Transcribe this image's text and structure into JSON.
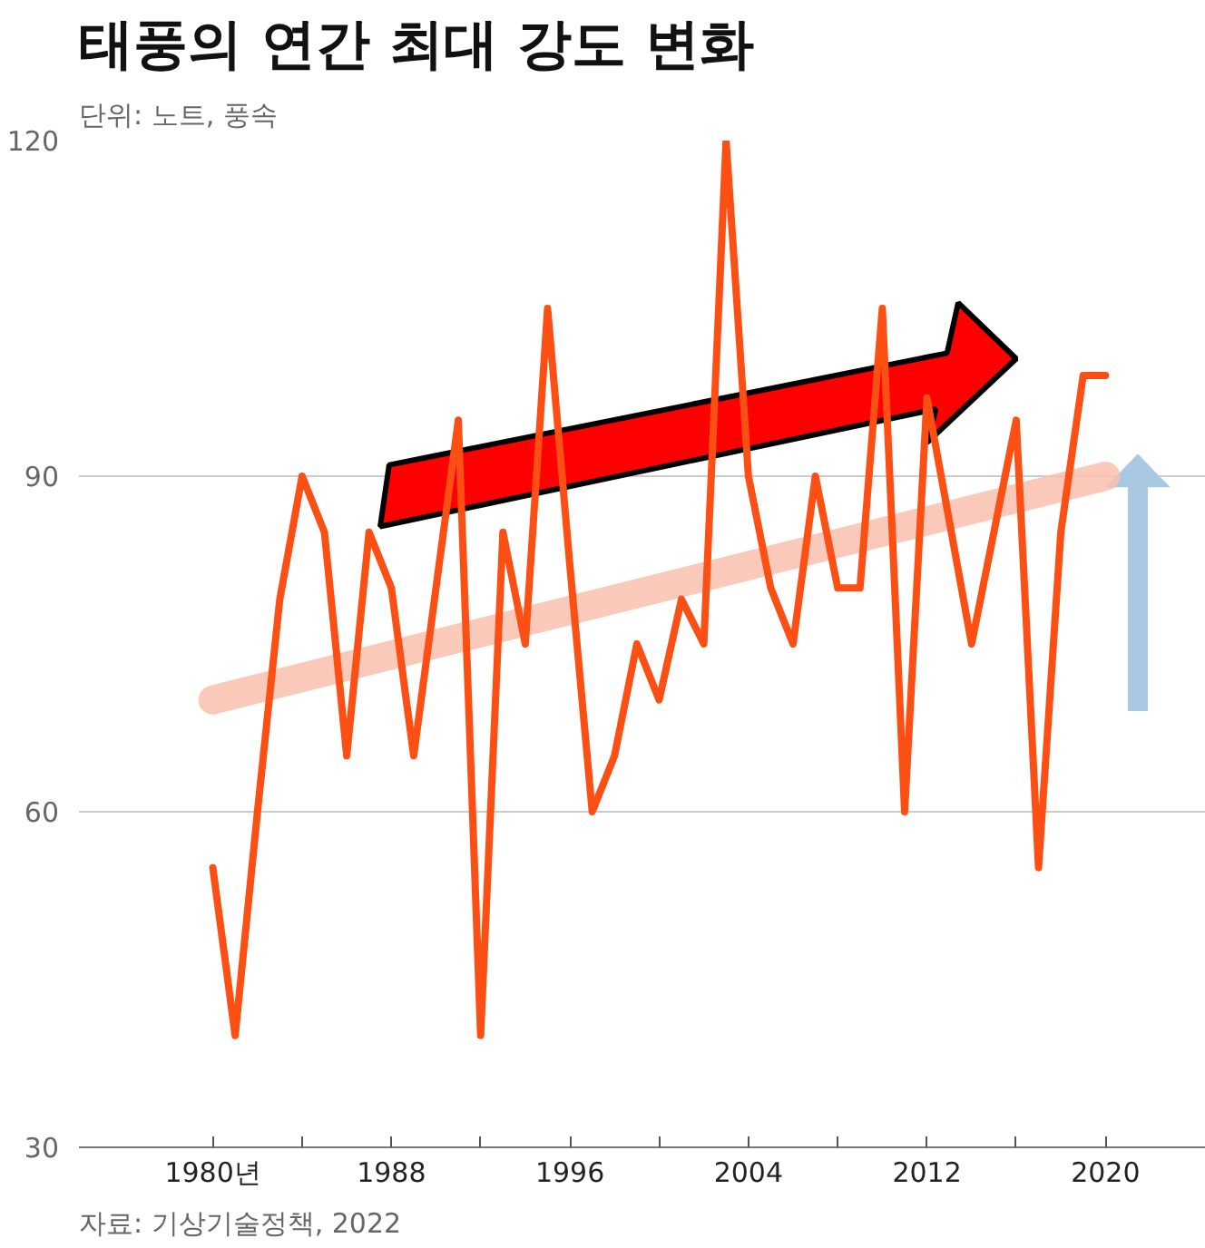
{
  "chart_data": {
    "type": "line",
    "title": "태풍의 연간 최대 강도 변화",
    "subtitle": "단위: 노트, 풍속",
    "annotations": [
      "자료: 기상기술정책, 2022"
    ],
    "x": [
      1980,
      1981,
      1982,
      1983,
      1984,
      1985,
      1986,
      1987,
      1988,
      1989,
      1990,
      1991,
      1992,
      1993,
      1994,
      1995,
      1996,
      1997,
      1998,
      1999,
      2000,
      2001,
      2002,
      2003,
      2004,
      2005,
      2006,
      2007,
      2008,
      2009,
      2010,
      2011,
      2012,
      2013,
      2014,
      2015,
      2016,
      2017,
      2018,
      2019,
      2020
    ],
    "series": [
      {
        "color": "#fc4f14",
        "values": [
          55,
          40,
          60,
          79,
          90,
          85,
          65,
          85,
          80,
          65,
          80,
          95,
          40,
          85,
          75,
          105,
          82,
          60,
          65,
          75,
          70,
          79,
          75,
          120,
          90,
          80,
          75,
          90,
          80,
          80,
          105,
          60,
          97,
          86,
          75,
          85,
          95,
          55,
          85,
          99,
          99
        ]
      },
      {
        "color": "#f9bfae",
        "x": [
          1980,
          2020
        ],
        "values": [
          70,
          90
        ]
      }
    ],
    "xlim": [
      1974,
      2024.5
    ],
    "ylim": [
      30,
      120
    ],
    "xticks": [
      {
        "value": 1980,
        "label": "1980년"
      },
      {
        "value": 1984,
        "label": null
      },
      1988,
      {
        "value": 1992,
        "label": null
      },
      1996,
      {
        "value": 2000,
        "label": null
      },
      2004,
      {
        "value": 2008,
        "label": null
      },
      2012,
      {
        "value": 2016,
        "label": null
      },
      2020
    ],
    "yticks": [
      30,
      60,
      90,
      120
    ],
    "grid": "y",
    "marker": "none",
    "line_style": "solid"
  }
}
